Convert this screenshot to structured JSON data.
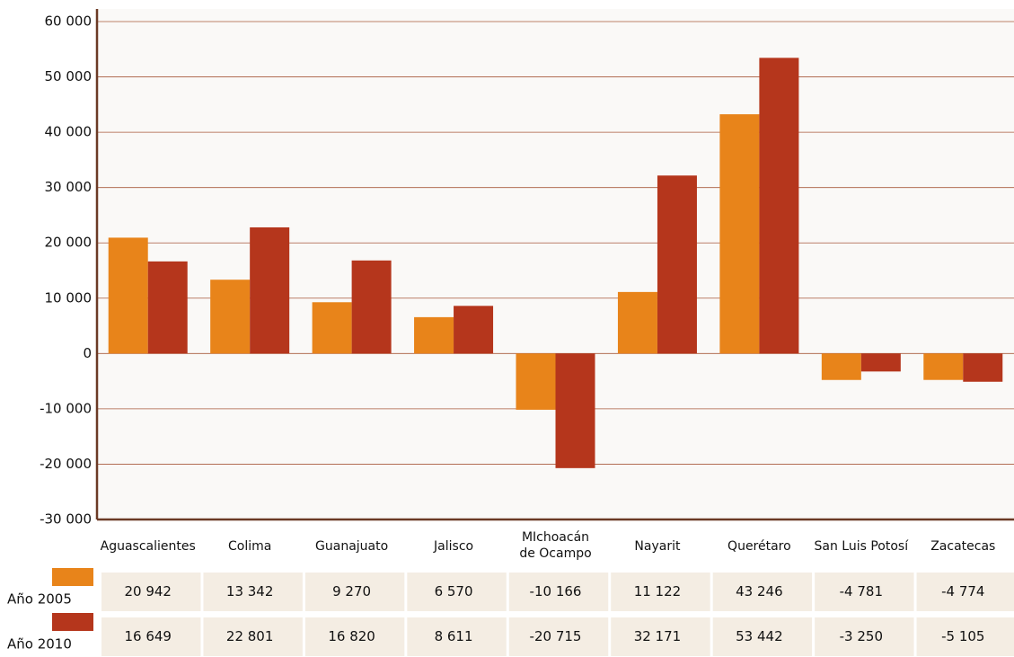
{
  "chart_data": {
    "type": "bar",
    "categories": [
      "Aguascalientes",
      "Colima",
      "Guanajuato",
      "Jalisco",
      "MIchoacán de Ocampo",
      "Nayarit",
      "Querétaro",
      "San Luis Potosí",
      "Zacatecas"
    ],
    "series": [
      {
        "name": "Año 2005",
        "color": "#e8841a",
        "values": [
          20942,
          13342,
          9270,
          6570,
          -10166,
          11122,
          43246,
          -4781,
          -4774
        ],
        "value_labels": [
          "20 942",
          "13 342",
          "9 270",
          "6 570",
          "-10 166",
          "11 122",
          "43 246",
          "-4 781",
          "-4 774"
        ]
      },
      {
        "name": "Año 2010",
        "color": "#b5361c",
        "values": [
          16649,
          22801,
          16820,
          8611,
          -20715,
          32171,
          53442,
          -3250,
          -5105
        ],
        "value_labels": [
          "16 649",
          "22 801",
          "16 820",
          "8 611",
          "-20 715",
          "32 171",
          "53 442",
          "-3 250",
          "-5 105"
        ]
      }
    ],
    "ylim": [
      -30000,
      60000
    ],
    "yticks": [
      {
        "value": -30000,
        "label": "-30 000"
      },
      {
        "value": -20000,
        "label": "-20 000"
      },
      {
        "value": -10000,
        "label": "-10 000"
      },
      0,
      {
        "value": 10000,
        "label": "10 000"
      },
      {
        "value": 20000,
        "label": "20 000"
      },
      {
        "value": 30000,
        "label": "30 000"
      },
      {
        "value": 40000,
        "label": "40 000"
      },
      {
        "value": 50000,
        "label": "50 000"
      },
      {
        "value": 60000,
        "label": "60 000"
      }
    ],
    "grid": true
  }
}
